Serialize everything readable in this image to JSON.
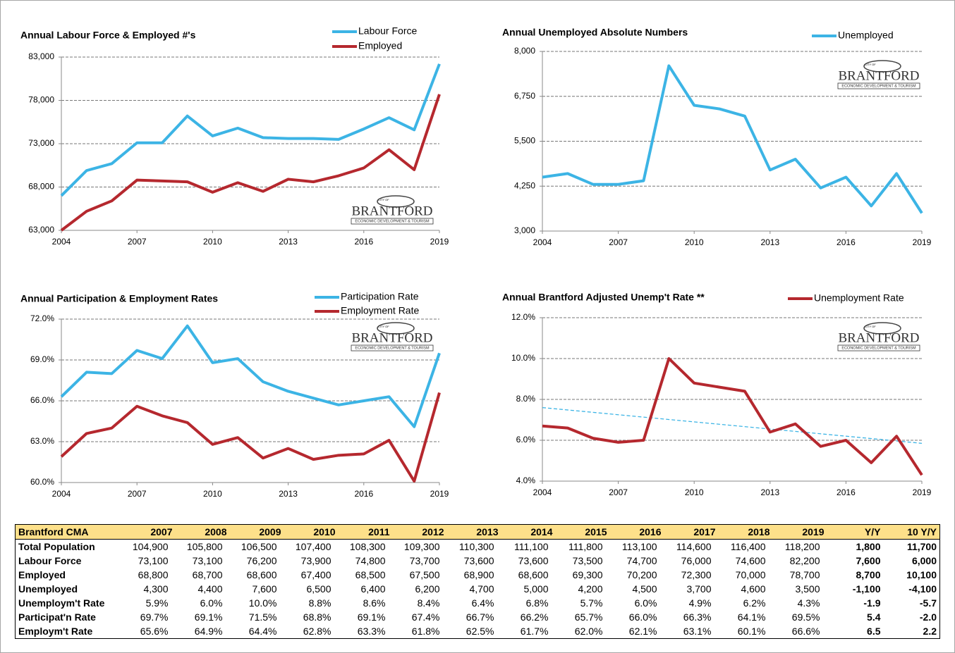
{
  "chart_data": [
    {
      "type": "line",
      "title": "Annual Labour Force & Employed #'s",
      "x": [
        2004,
        2005,
        2006,
        2007,
        2008,
        2009,
        2010,
        2011,
        2012,
        2013,
        2014,
        2015,
        2016,
        2017,
        2018,
        2019
      ],
      "series": [
        {
          "name": "Labour Force",
          "color": "#3cb4e5",
          "values": [
            67000,
            69900,
            70700,
            73100,
            73100,
            76200,
            73900,
            74800,
            73700,
            73600,
            73600,
            73500,
            74700,
            76000,
            74600,
            82200
          ]
        },
        {
          "name": "Employed",
          "color": "#b5282e",
          "values": [
            63000,
            65200,
            66400,
            68800,
            68700,
            68600,
            67400,
            68500,
            67500,
            68900,
            68600,
            69300,
            70200,
            72300,
            70000,
            78700
          ]
        }
      ],
      "xlim": [
        2004,
        2019
      ],
      "xticks": [
        2004,
        2007,
        2010,
        2013,
        2016,
        2019
      ],
      "ylim": [
        63000,
        83000
      ],
      "yticks": [
        {
          "value": 63000,
          "label": "63,000"
        },
        {
          "value": 68000,
          "label": "68,000"
        },
        {
          "value": 73000,
          "label": "73,000"
        },
        {
          "value": 78000,
          "label": "78,000"
        },
        {
          "value": 83000,
          "label": "83,000"
        }
      ],
      "grid": true
    },
    {
      "type": "line",
      "title": "Annual Unemployed Absolute Numbers",
      "x": [
        2004,
        2005,
        2006,
        2007,
        2008,
        2009,
        2010,
        2011,
        2012,
        2013,
        2014,
        2015,
        2016,
        2017,
        2018,
        2019
      ],
      "series": [
        {
          "name": "Unemployed",
          "color": "#3cb4e5",
          "values": [
            4500,
            4600,
            4300,
            4300,
            4400,
            7600,
            6500,
            6400,
            6200,
            4700,
            5000,
            4200,
            4500,
            3700,
            4600,
            3500
          ]
        }
      ],
      "xlim": [
        2004,
        2019
      ],
      "xticks": [
        2004,
        2007,
        2010,
        2013,
        2016,
        2019
      ],
      "ylim": [
        3000,
        8000
      ],
      "yticks": [
        {
          "value": 3000,
          "label": "3,000"
        },
        {
          "value": 4250,
          "label": "4,250"
        },
        {
          "value": 5500,
          "label": "5,500"
        },
        {
          "value": 6750,
          "label": "6,750"
        },
        {
          "value": 8000,
          "label": "8,000"
        }
      ],
      "grid": true
    },
    {
      "type": "line",
      "title": "Annual Participation & Employment Rates",
      "x": [
        2004,
        2005,
        2006,
        2007,
        2008,
        2009,
        2010,
        2011,
        2012,
        2013,
        2014,
        2015,
        2016,
        2017,
        2018,
        2019
      ],
      "series": [
        {
          "name": "Participation Rate",
          "color": "#3cb4e5",
          "values": [
            66.3,
            68.1,
            68.0,
            69.7,
            69.1,
            71.5,
            68.8,
            69.1,
            67.4,
            66.7,
            66.2,
            65.7,
            66.0,
            66.3,
            64.1,
            69.5
          ]
        },
        {
          "name": "Employment Rate",
          "color": "#b5282e",
          "values": [
            61.9,
            63.6,
            64.0,
            65.6,
            64.9,
            64.4,
            62.8,
            63.3,
            61.8,
            62.5,
            61.7,
            62.0,
            62.1,
            63.1,
            60.1,
            66.6
          ]
        }
      ],
      "xlim": [
        2004,
        2019
      ],
      "xticks": [
        2004,
        2007,
        2010,
        2013,
        2016,
        2019
      ],
      "ylim": [
        60,
        72
      ],
      "yticks": [
        {
          "value": 60,
          "label": "60.0%"
        },
        {
          "value": 63,
          "label": "63.0%"
        },
        {
          "value": 66,
          "label": "66.0%"
        },
        {
          "value": 69,
          "label": "69.0%"
        },
        {
          "value": 72,
          "label": "72.0%"
        }
      ],
      "grid": true
    },
    {
      "type": "line",
      "title": "Annual Brantford Adjusted Unemp't Rate **",
      "x": [
        2004,
        2005,
        2006,
        2007,
        2008,
        2009,
        2010,
        2011,
        2012,
        2013,
        2014,
        2015,
        2016,
        2017,
        2018,
        2019
      ],
      "series": [
        {
          "name": "Unemployment Rate",
          "color": "#b5282e",
          "values": [
            6.7,
            6.6,
            6.1,
            5.9,
            6.0,
            10.0,
            8.8,
            8.6,
            8.4,
            6.4,
            6.8,
            5.7,
            6.0,
            4.9,
            6.2,
            4.3
          ]
        }
      ],
      "trend_line": {
        "x": [
          2004,
          2019
        ],
        "values": [
          7.6,
          5.85
        ],
        "color": "#3cb4e5"
      },
      "xlim": [
        2004,
        2019
      ],
      "xticks": [
        2004,
        2007,
        2010,
        2013,
        2016,
        2019
      ],
      "ylim": [
        4,
        12
      ],
      "yticks": [
        {
          "value": 4,
          "label": "4.0%"
        },
        {
          "value": 6,
          "label": "6.0%"
        },
        {
          "value": 8,
          "label": "8.0%"
        },
        {
          "value": 10,
          "label": "10.0%"
        },
        {
          "value": 12,
          "label": "12.0%"
        }
      ],
      "grid": true
    }
  ],
  "logo": {
    "small": "CITY OF",
    "name": "BRANTFORD",
    "tagline": "ECONOMIC DEVELOPMENT & TOURISM"
  },
  "table": {
    "header": [
      "Brantford CMA",
      "2007",
      "2008",
      "2009",
      "2010",
      "2011",
      "2012",
      "2013",
      "2014",
      "2015",
      "2016",
      "2017",
      "2018",
      "2019",
      "Y/Y",
      "10 Y/Y"
    ],
    "rows": [
      [
        "Total Population",
        "104,900",
        "105,800",
        "106,500",
        "107,400",
        "108,300",
        "109,300",
        "110,300",
        "111,100",
        "111,800",
        "113,100",
        "114,600",
        "116,400",
        "118,200",
        "1,800",
        "11,700"
      ],
      [
        "Labour Force",
        "73,100",
        "73,100",
        "76,200",
        "73,900",
        "74,800",
        "73,700",
        "73,600",
        "73,600",
        "73,500",
        "74,700",
        "76,000",
        "74,600",
        "82,200",
        "7,600",
        "6,000"
      ],
      [
        "Employed",
        "68,800",
        "68,700",
        "68,600",
        "67,400",
        "68,500",
        "67,500",
        "68,900",
        "68,600",
        "69,300",
        "70,200",
        "72,300",
        "70,000",
        "78,700",
        "8,700",
        "10,100"
      ],
      [
        "Unemployed",
        "4,300",
        "4,400",
        "7,600",
        "6,500",
        "6,400",
        "6,200",
        "4,700",
        "5,000",
        "4,200",
        "4,500",
        "3,700",
        "4,600",
        "3,500",
        "-1,100",
        "-4,100"
      ],
      [
        "Unemploym't Rate",
        "5.9%",
        "6.0%",
        "10.0%",
        "8.8%",
        "8.6%",
        "8.4%",
        "6.4%",
        "6.8%",
        "5.7%",
        "6.0%",
        "4.9%",
        "6.2%",
        "4.3%",
        "-1.9",
        "-5.7"
      ],
      [
        "Participat'n Rate",
        "69.7%",
        "69.1%",
        "71.5%",
        "68.8%",
        "69.1%",
        "67.4%",
        "66.7%",
        "66.2%",
        "65.7%",
        "66.0%",
        "66.3%",
        "64.1%",
        "69.5%",
        "5.4",
        "-2.0"
      ],
      [
        "Employm't Rate",
        "65.6%",
        "64.9%",
        "64.4%",
        "62.8%",
        "63.3%",
        "61.8%",
        "62.5%",
        "61.7%",
        "62.0%",
        "62.1%",
        "63.1%",
        "60.1%",
        "66.6%",
        "6.5",
        "2.2"
      ]
    ]
  }
}
